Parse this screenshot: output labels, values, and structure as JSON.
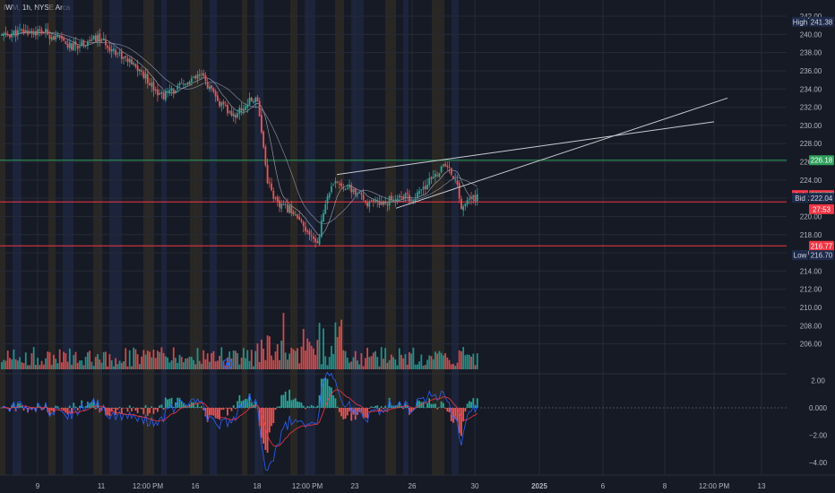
{
  "header": {
    "symbol": "IWM",
    "interval": "1h",
    "exchange": "NYSE Arca",
    "title_text": "IWM, 1h, NYSE Arca"
  },
  "colors": {
    "background": "#161a25",
    "bull": "#26a69a",
    "bear": "#ef5350",
    "grid": "#262a36",
    "session_pre": "#3a3324",
    "session_post": "#1f2a44",
    "ma_fast": "#b2b5be",
    "ma_slow": "#9aa0b4",
    "support_line": "#f23645",
    "resistance_line": "#2e9f5a",
    "trend_line": "#c8cbd2",
    "macd_line": "#2962ff",
    "signal_line": "#f23645"
  },
  "price_axis": {
    "ticks": [
      "242.00",
      "240.00",
      "238.00",
      "236.00",
      "234.00",
      "232.00",
      "230.00",
      "228.00",
      "226.00",
      "224.00",
      "222.00",
      "220.00",
      "218.00",
      "216.00",
      "214.00",
      "212.00",
      "210.00",
      "208.00",
      "206.00"
    ],
    "tags": [
      {
        "label": "High",
        "value": "241.38",
        "price": 241.38,
        "style": "navy"
      },
      {
        "label": "",
        "value": "226.18",
        "price": 226.18,
        "style": "green"
      },
      {
        "label": "Ask",
        "value": "222.35",
        "price": 222.35,
        "style": "red"
      },
      {
        "label": "",
        "value": "222.09",
        "price": 222.09,
        "style": "teal"
      },
      {
        "label": "Bid",
        "value": "222.04",
        "price": 222.04,
        "style": "navy"
      },
      {
        "label": "",
        "value": "27:53",
        "price": 220.8,
        "style": "red"
      },
      {
        "label": "",
        "value": "216.77",
        "price": 216.77,
        "style": "red"
      },
      {
        "label": "Low",
        "value": "216.70",
        "price": 215.75,
        "style": "navy"
      }
    ]
  },
  "indicator_axis": {
    "ticks": [
      "2.00",
      "0.000",
      "−2.00",
      "−4.00"
    ]
  },
  "time_axis": {
    "ticks": [
      "9",
      "11",
      "12:00 PM",
      "16",
      "18",
      "12:00 PM",
      "23",
      "26",
      "30",
      "2025",
      "6",
      "8",
      "12:00 PM",
      "13"
    ]
  },
  "chart_data": {
    "type": "candlestick",
    "instrument": "IWM",
    "timeframe": "1h",
    "price_range": [
      205,
      243
    ],
    "indicator_range": [
      -5,
      3.5
    ],
    "horizontal_levels": [
      {
        "price": 226.18,
        "color": "green"
      },
      {
        "price": 221.6,
        "color": "red"
      },
      {
        "price": 216.77,
        "color": "red"
      }
    ],
    "anchor_prices": [
      [
        0,
        239.8
      ],
      [
        10,
        240.3
      ],
      [
        22,
        240.2
      ],
      [
        35,
        238.6
      ],
      [
        48,
        239.6
      ],
      [
        58,
        238.0
      ],
      [
        70,
        235.8
      ],
      [
        80,
        233.2
      ],
      [
        90,
        234.3
      ],
      [
        100,
        235.5
      ],
      [
        108,
        232.6
      ],
      [
        116,
        231.0
      ],
      [
        124,
        232.6
      ],
      [
        128,
        233.0
      ],
      [
        133,
        224.0
      ],
      [
        138,
        221.2
      ],
      [
        145,
        220.8
      ],
      [
        153,
        218.0
      ],
      [
        158,
        217.2
      ],
      [
        163,
        222.4
      ],
      [
        168,
        223.8
      ],
      [
        176,
        222.8
      ],
      [
        184,
        221.3
      ],
      [
        192,
        221.6
      ],
      [
        200,
        222.3
      ],
      [
        206,
        221.8
      ],
      [
        212,
        223.3
      ],
      [
        218,
        224.8
      ],
      [
        222,
        225.6
      ],
      [
        227,
        224.2
      ],
      [
        230,
        221.0
      ],
      [
        233,
        221.6
      ],
      [
        238,
        222.3
      ]
    ],
    "indicator_notes": "MACD-style oscillator: blue line, red signal line, histogram bars"
  }
}
